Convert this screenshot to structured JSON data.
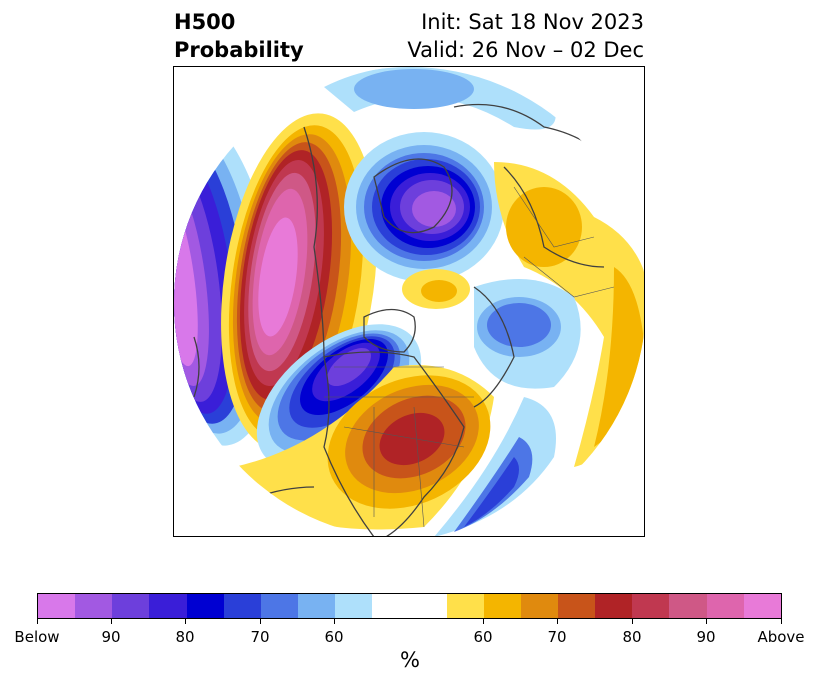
{
  "header": {
    "title_line1": "H500",
    "title_line2": "Probability",
    "init": "Init: Sat 18 Nov 2023",
    "valid": "Valid: 26 Nov – 02 Dec"
  },
  "map": {
    "projection": "north-polar-stereographic",
    "field": "500 hPa height anomaly probability",
    "anomalies": [
      {
        "name": "western-ridge",
        "sign": "above",
        "level": "Above"
      },
      {
        "name": "eastern-us-ridge",
        "sign": "above",
        "level": 85
      },
      {
        "name": "europe-ridge",
        "sign": "above",
        "level": 60
      },
      {
        "name": "arctic-ridge",
        "sign": "above",
        "level": 60
      },
      {
        "name": "pacific-trough",
        "sign": "below",
        "level": "Below"
      },
      {
        "name": "polar-trough",
        "sign": "below",
        "level": 95
      },
      {
        "name": "canada-trough",
        "sign": "below",
        "level": 90
      },
      {
        "name": "atlantic-trough",
        "sign": "below",
        "level": 75
      },
      {
        "name": "siberia-trough",
        "sign": "below",
        "level": 70
      }
    ]
  },
  "colorbar": {
    "colors": [
      "#d878ea",
      "#a259e2",
      "#6d3fdc",
      "#3a1ed8",
      "#0000d2",
      "#2a3fd8",
      "#4d76e6",
      "#78b2f2",
      "#aee0fb",
      "#ffffff",
      "#ffffff",
      "#ffe04a",
      "#f4b500",
      "#e08a0e",
      "#c8541a",
      "#b02326",
      "#c03850",
      "#cf5886",
      "#de65ad",
      "#e87ad8"
    ],
    "ticks": [
      "Below",
      "90",
      "80",
      "70",
      "60",
      "60",
      "70",
      "80",
      "90",
      "Above"
    ],
    "unit": "%"
  }
}
